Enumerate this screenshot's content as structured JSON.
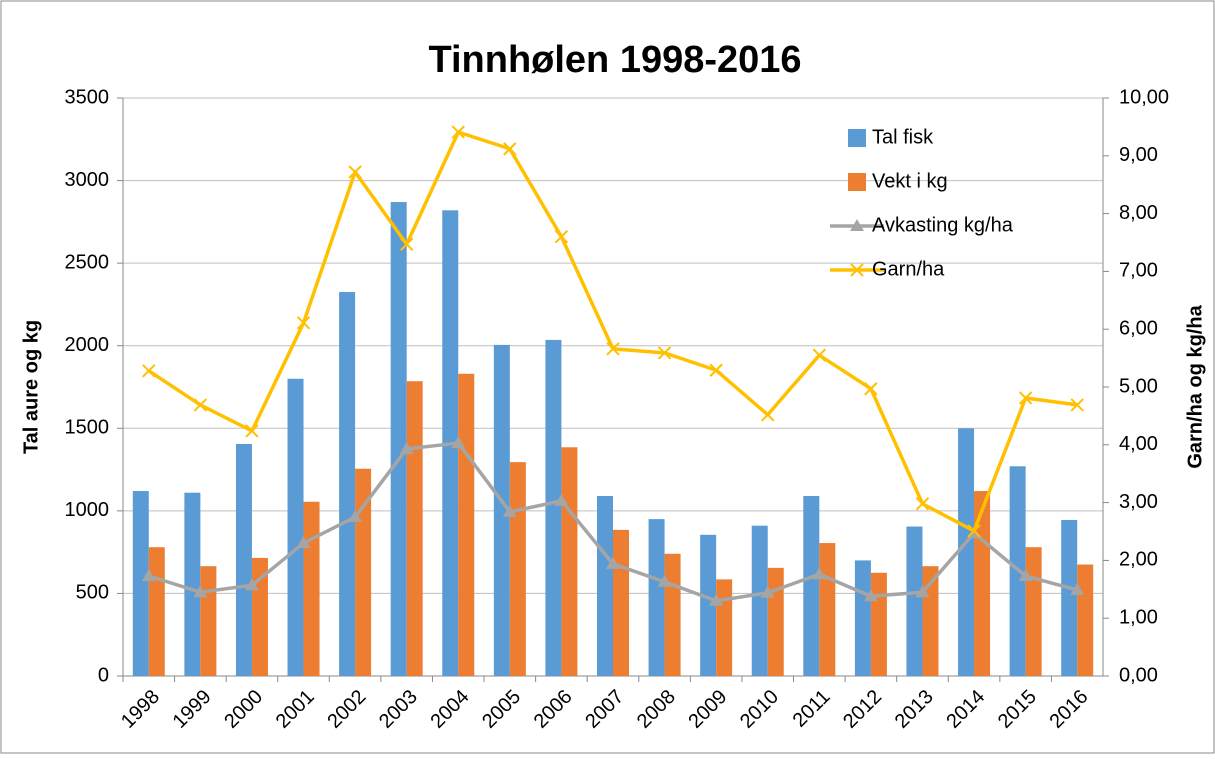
{
  "chart_data": {
    "type": "bar",
    "title": "Tinnhølen 1998-2016",
    "y_label": "Tal aure og kg",
    "y2_label": "Garn/ha og kg/ha",
    "categories": [
      "1998",
      "1999",
      "2000",
      "2001",
      "2002",
      "2003",
      "2004",
      "2005",
      "2006",
      "2007",
      "2008",
      "2009",
      "2010",
      "2011",
      "2012",
      "2013",
      "2014",
      "2015",
      "2016"
    ],
    "series": [
      {
        "name": "Tal fisk",
        "type": "bar",
        "color": "#5b9bd5",
        "values": [
          1120,
          1110,
          1405,
          1800,
          2325,
          2870,
          2820,
          2005,
          2035,
          1090,
          950,
          855,
          910,
          1090,
          700,
          905,
          1500,
          1270,
          945
        ]
      },
      {
        "name": "Vekt i kg",
        "type": "bar",
        "color": "#ed7d31",
        "values": [
          780,
          665,
          715,
          1055,
          1255,
          1785,
          1830,
          1295,
          1385,
          885,
          740,
          585,
          655,
          805,
          625,
          665,
          1120,
          780,
          675
        ]
      },
      {
        "name": "Avkasting kg/ha",
        "type": "line",
        "marker": "triangle",
        "axis": "y2",
        "color": "#a5a5a5",
        "values": [
          1.73,
          1.45,
          1.57,
          2.3,
          2.75,
          3.93,
          4.03,
          2.84,
          3.03,
          1.94,
          1.63,
          1.3,
          1.44,
          1.76,
          1.38,
          1.45,
          2.47,
          1.73,
          1.49
        ]
      },
      {
        "name": "Garn/ha",
        "type": "line",
        "marker": "x",
        "axis": "y2",
        "color": "#ffc000",
        "values": [
          5.28,
          4.69,
          4.24,
          6.11,
          8.72,
          7.47,
          9.41,
          9.12,
          7.6,
          5.66,
          5.59,
          5.29,
          4.52,
          5.55,
          4.97,
          2.98,
          2.51,
          4.81,
          4.69
        ]
      }
    ],
    "ylim": [
      0,
      3500
    ],
    "yticks": [
      0,
      500,
      1000,
      1500,
      2000,
      2500,
      3000,
      3500
    ],
    "y2lim": [
      0,
      10
    ],
    "y2ticks": [
      {
        "value": 0,
        "label": "0,00"
      },
      {
        "value": 1,
        "label": "1,00"
      },
      {
        "value": 2,
        "label": "2,00"
      },
      {
        "value": 3,
        "label": "3,00"
      },
      {
        "value": 4,
        "label": "4,00"
      },
      {
        "value": 5,
        "label": "5,00"
      },
      {
        "value": 6,
        "label": "6,00"
      },
      {
        "value": 7,
        "label": "7,00"
      },
      {
        "value": 8,
        "label": "8,00"
      },
      {
        "value": 9,
        "label": "9,00"
      },
      {
        "value": 10,
        "label": "10,00"
      }
    ],
    "grid": true,
    "legend": "upper right"
  }
}
